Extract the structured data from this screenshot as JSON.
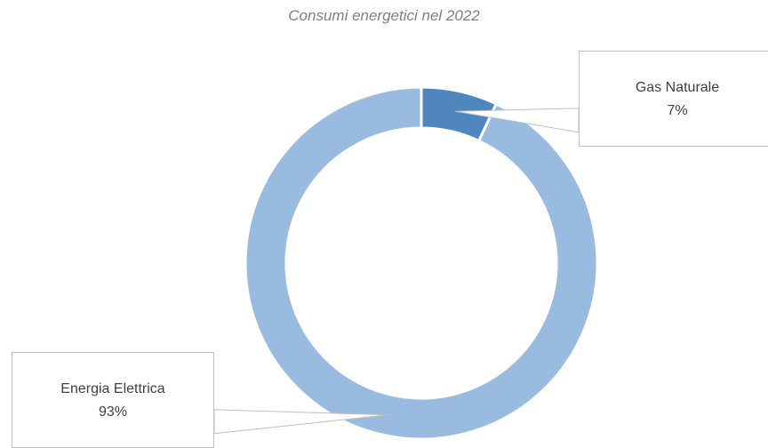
{
  "chart_data": {
    "type": "pie",
    "variant": "doughnut",
    "title": "Consumi energetici nel 2022",
    "categories": [
      "Gas Naturale",
      "Energia Elettrica"
    ],
    "values": [
      7,
      93
    ],
    "labels": [
      "7%",
      "93%"
    ],
    "colors": [
      "#4f86bd",
      "#9abbe0"
    ],
    "legend": "none",
    "data_labels": "callouts"
  }
}
